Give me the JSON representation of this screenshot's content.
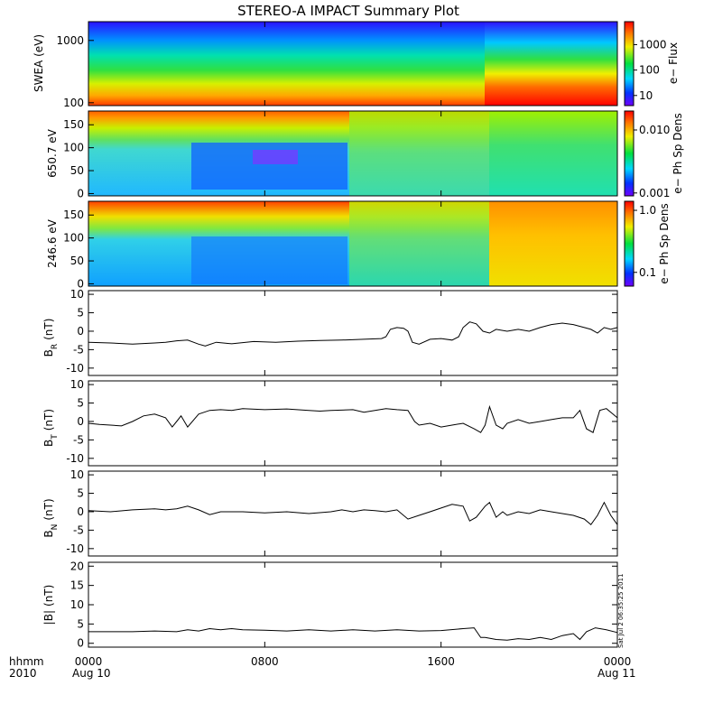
{
  "title": "STEREO-A IMPACT Summary Plot",
  "chart_data": {
    "type": "line",
    "xaxis": {
      "ticks": [
        "0000",
        "0800",
        "1600",
        "0000"
      ],
      "tick_hours": [
        0,
        8,
        16,
        24
      ],
      "sublabels": [
        "Aug 10",
        "Aug 11"
      ],
      "label_top": "hhmm",
      "label_bottom": "2010",
      "range_hours": [
        0,
        24
      ]
    },
    "spectrograms": [
      {
        "ylabel": "SWEA (eV)",
        "yscale": "log",
        "ylim": [
          90,
          2000
        ],
        "yticks": [
          "1000",
          "100"
        ],
        "ytick_values": [
          1000,
          100
        ],
        "colorbar_label": "e− Flux",
        "colorbar_ticks": [
          "1000",
          "100",
          "10"
        ],
        "colorbar_values": [
          1000,
          100,
          10
        ],
        "colorbar_scale": "log",
        "colorbar_range": [
          4,
          8000
        ]
      },
      {
        "ylabel": "650.7 eV",
        "yscale": "linear",
        "ylim": [
          -5,
          180
        ],
        "yticks": [
          "150",
          "100",
          "50",
          "0"
        ],
        "ytick_values": [
          150,
          100,
          50,
          0
        ],
        "colorbar_label": "e− Ph Sp Dens",
        "colorbar_ticks": [
          "0.010",
          "0.001"
        ],
        "colorbar_values": [
          0.01,
          0.001
        ],
        "colorbar_scale": "log",
        "colorbar_range": [
          0.0009,
          0.02
        ]
      },
      {
        "ylabel": "246.6 eV",
        "yscale": "linear",
        "ylim": [
          -5,
          180
        ],
        "yticks": [
          "150",
          "100",
          "50",
          "0"
        ],
        "ytick_values": [
          150,
          100,
          50,
          0
        ],
        "colorbar_label": "e− Ph Sp Dens",
        "colorbar_ticks": [
          "1.0",
          "0.1"
        ],
        "colorbar_values": [
          1.0,
          0.1
        ],
        "colorbar_scale": "log",
        "colorbar_range": [
          0.06,
          1.4
        ]
      }
    ],
    "series": [
      {
        "ylabel": "B_R (nT)",
        "sym": "B",
        "sub": "R",
        "unit": "(nT)",
        "ylim": [
          -12,
          11
        ],
        "yticks": [
          "10",
          "5",
          "0",
          "-5",
          "-10"
        ],
        "ytick_values": [
          10,
          5,
          0,
          -5,
          -10
        ],
        "points": [
          [
            0,
            -3
          ],
          [
            1,
            -3.2
          ],
          [
            2,
            -3.5
          ],
          [
            3,
            -3.2
          ],
          [
            3.5,
            -3
          ],
          [
            4,
            -2.6
          ],
          [
            4.5,
            -2.4
          ],
          [
            5,
            -3.5
          ],
          [
            5.3,
            -4
          ],
          [
            5.8,
            -3
          ],
          [
            6.5,
            -3.4
          ],
          [
            7.5,
            -2.8
          ],
          [
            8.5,
            -3
          ],
          [
            9.5,
            -2.7
          ],
          [
            10.5,
            -2.5
          ],
          [
            11.5,
            -2.4
          ],
          [
            12.5,
            -2.2
          ],
          [
            13.3,
            -2
          ],
          [
            13.5,
            -1.5
          ],
          [
            13.7,
            0.5
          ],
          [
            14,
            1
          ],
          [
            14.3,
            0.8
          ],
          [
            14.5,
            0
          ],
          [
            14.7,
            -3
          ],
          [
            15,
            -3.5
          ],
          [
            15.5,
            -2.2
          ],
          [
            16,
            -2
          ],
          [
            16.5,
            -2.4
          ],
          [
            16.8,
            -1.5
          ],
          [
            17,
            1
          ],
          [
            17.3,
            2.5
          ],
          [
            17.6,
            2
          ],
          [
            17.9,
            0
          ],
          [
            18.2,
            -0.5
          ],
          [
            18.5,
            0.5
          ],
          [
            19,
            0
          ],
          [
            19.5,
            0.5
          ],
          [
            20,
            0
          ],
          [
            20.5,
            1
          ],
          [
            21,
            1.8
          ],
          [
            21.5,
            2.2
          ],
          [
            22,
            1.8
          ],
          [
            22.5,
            1
          ],
          [
            22.8,
            0.5
          ],
          [
            23.1,
            -0.5
          ],
          [
            23.4,
            1
          ],
          [
            23.7,
            0.5
          ],
          [
            24,
            1
          ]
        ]
      },
      {
        "ylabel": "B_T (nT)",
        "sym": "B",
        "sub": "T",
        "unit": "(nT)",
        "ylim": [
          -12,
          11
        ],
        "yticks": [
          "10",
          "5",
          "0",
          "-5",
          "-10"
        ],
        "ytick_values": [
          10,
          5,
          0,
          -5,
          -10
        ],
        "points": [
          [
            0,
            -0.5
          ],
          [
            0.5,
            -0.8
          ],
          [
            1,
            -1
          ],
          [
            1.5,
            -1.2
          ],
          [
            2,
            0
          ],
          [
            2.5,
            1.5
          ],
          [
            3,
            2
          ],
          [
            3.5,
            1
          ],
          [
            3.8,
            -1.5
          ],
          [
            4,
            0
          ],
          [
            4.2,
            1.5
          ],
          [
            4.5,
            -1.5
          ],
          [
            5,
            2
          ],
          [
            5.5,
            3
          ],
          [
            6,
            3.2
          ],
          [
            6.5,
            3
          ],
          [
            7,
            3.5
          ],
          [
            8,
            3.2
          ],
          [
            9,
            3.4
          ],
          [
            10,
            3
          ],
          [
            10.5,
            2.8
          ],
          [
            11,
            3
          ],
          [
            12,
            3.2
          ],
          [
            12.5,
            2.5
          ],
          [
            13,
            3
          ],
          [
            13.5,
            3.5
          ],
          [
            14,
            3.2
          ],
          [
            14.5,
            3
          ],
          [
            14.8,
            0
          ],
          [
            15,
            -1
          ],
          [
            15.5,
            -0.5
          ],
          [
            16,
            -1.5
          ],
          [
            16.5,
            -1
          ],
          [
            17,
            -0.5
          ],
          [
            17.5,
            -2
          ],
          [
            17.8,
            -3
          ],
          [
            18,
            -1
          ],
          [
            18.2,
            4
          ],
          [
            18.5,
            -1
          ],
          [
            18.8,
            -2
          ],
          [
            19,
            -0.5
          ],
          [
            19.5,
            0.5
          ],
          [
            20,
            -0.5
          ],
          [
            20.5,
            0
          ],
          [
            21,
            0.5
          ],
          [
            21.5,
            1
          ],
          [
            22,
            1
          ],
          [
            22.3,
            3
          ],
          [
            22.6,
            -2
          ],
          [
            22.9,
            -3
          ],
          [
            23.2,
            3
          ],
          [
            23.5,
            3.5
          ],
          [
            23.8,
            2
          ],
          [
            24,
            1
          ]
        ]
      },
      {
        "ylabel": "B_N (nT)",
        "sym": "B",
        "sub": "N",
        "unit": "(nT)",
        "ylim": [
          -12,
          11
        ],
        "yticks": [
          "10",
          "5",
          "0",
          "-5",
          "-10"
        ],
        "ytick_values": [
          10,
          5,
          0,
          -5,
          -10
        ],
        "points": [
          [
            0,
            0.3
          ],
          [
            1,
            0
          ],
          [
            2,
            0.5
          ],
          [
            3,
            0.8
          ],
          [
            3.5,
            0.5
          ],
          [
            4,
            0.8
          ],
          [
            4.5,
            1.5
          ],
          [
            5,
            0.5
          ],
          [
            5.5,
            -0.8
          ],
          [
            6,
            0
          ],
          [
            7,
            0
          ],
          [
            8,
            -0.3
          ],
          [
            9,
            0
          ],
          [
            10,
            -0.5
          ],
          [
            11,
            0
          ],
          [
            11.5,
            0.5
          ],
          [
            12,
            0
          ],
          [
            12.5,
            0.5
          ],
          [
            13,
            0.3
          ],
          [
            13.5,
            0
          ],
          [
            14,
            0.5
          ],
          [
            14.5,
            -2
          ],
          [
            15,
            -1
          ],
          [
            15.5,
            0
          ],
          [
            16,
            1
          ],
          [
            16.5,
            2
          ],
          [
            17,
            1.5
          ],
          [
            17.3,
            -2.5
          ],
          [
            17.6,
            -1.5
          ],
          [
            18,
            1.5
          ],
          [
            18.2,
            2.5
          ],
          [
            18.5,
            -1.5
          ],
          [
            18.8,
            0
          ],
          [
            19,
            -1
          ],
          [
            19.5,
            0
          ],
          [
            20,
            -0.5
          ],
          [
            20.5,
            0.5
          ],
          [
            21,
            0
          ],
          [
            21.5,
            -0.5
          ],
          [
            22,
            -1
          ],
          [
            22.5,
            -2
          ],
          [
            22.8,
            -3.5
          ],
          [
            23.1,
            -1
          ],
          [
            23.4,
            2.5
          ],
          [
            23.7,
            -1
          ],
          [
            24,
            -3.5
          ]
        ]
      },
      {
        "ylabel": "|B| (nT)",
        "sym": "|B|",
        "sub": "",
        "unit": "(nT)",
        "ylim": [
          -1,
          21
        ],
        "yticks": [
          "20",
          "15",
          "10",
          "5",
          "0"
        ],
        "ytick_values": [
          20,
          15,
          10,
          5,
          0
        ],
        "points": [
          [
            0,
            3
          ],
          [
            1,
            3
          ],
          [
            2,
            3
          ],
          [
            3,
            3.2
          ],
          [
            4,
            3
          ],
          [
            4.5,
            3.5
          ],
          [
            5,
            3.2
          ],
          [
            5.5,
            3.8
          ],
          [
            6,
            3.5
          ],
          [
            6.5,
            3.8
          ],
          [
            7,
            3.5
          ],
          [
            8,
            3.4
          ],
          [
            9,
            3.2
          ],
          [
            10,
            3.5
          ],
          [
            11,
            3.2
          ],
          [
            12,
            3.5
          ],
          [
            13,
            3.2
          ],
          [
            14,
            3.5
          ],
          [
            15,
            3.2
          ],
          [
            16,
            3.3
          ],
          [
            17,
            3.8
          ],
          [
            17.5,
            4
          ],
          [
            17.8,
            1.5
          ],
          [
            18,
            1.5
          ],
          [
            18.5,
            1
          ],
          [
            19,
            0.8
          ],
          [
            19.5,
            1.2
          ],
          [
            20,
            1
          ],
          [
            20.5,
            1.5
          ],
          [
            21,
            1
          ],
          [
            21.5,
            2
          ],
          [
            22,
            2.5
          ],
          [
            22.3,
            1
          ],
          [
            22.6,
            3
          ],
          [
            23,
            4
          ],
          [
            23.5,
            3.5
          ],
          [
            24,
            2.8
          ]
        ]
      }
    ],
    "side_text": "Sat Jul  2 06:35:25 2011"
  }
}
